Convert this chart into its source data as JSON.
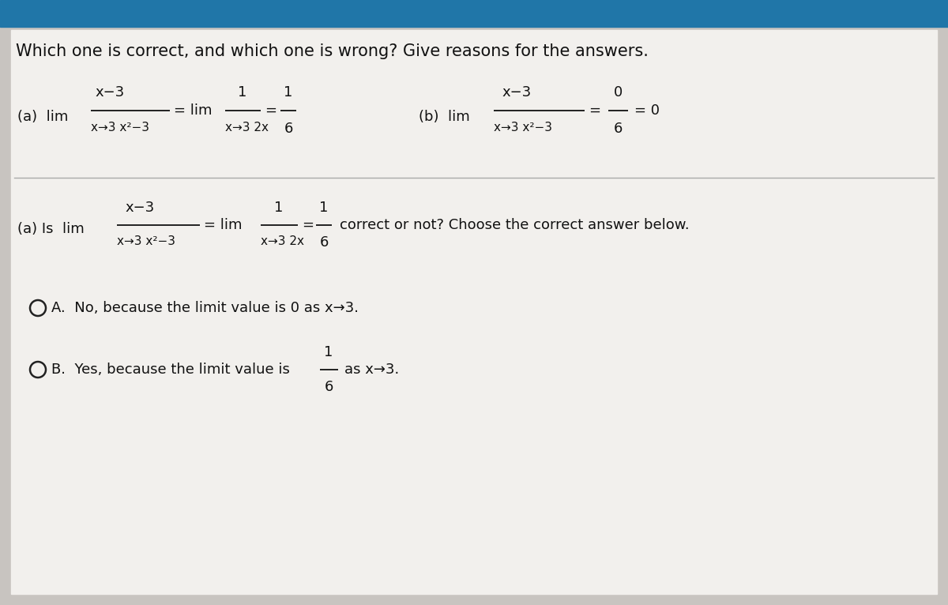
{
  "bg_color": "#c8c4c0",
  "header_bg": "#2076a8",
  "content_bg": "#f2f0ed",
  "title": "Which one is correct, and which one is wrong? Give reasons for the answers.",
  "title_fontsize": 15,
  "math_color": "#111111",
  "option_A_text": "No, because the limit value is 0 as x→3.",
  "option_B_text": "Yes, because the limit value is",
  "option_B_tail": "as x→3."
}
